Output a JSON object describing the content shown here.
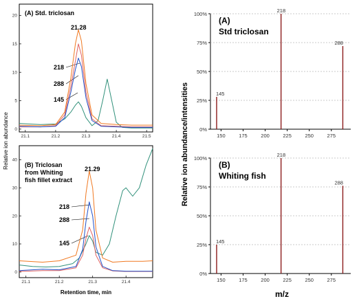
{
  "chart_data": [
    {
      "type": "line",
      "panel": "left-top",
      "title": "(A) Std. triclosan",
      "annotations": [
        "21.28",
        "218",
        "288",
        "145"
      ],
      "xlim": [
        21.08,
        21.52
      ],
      "x_ticks": [
        "21.1",
        "21.2",
        "21.3",
        "21.4",
        "21.5"
      ],
      "ylim": [
        -0.5,
        22
      ],
      "y_ticks": [
        "0",
        "5",
        "10",
        "15",
        "20"
      ],
      "series": [
        {
          "color": "#f07820",
          "x": [
            21.08,
            21.15,
            21.2,
            21.23,
            21.25,
            21.265,
            21.275,
            21.285,
            21.3,
            21.32,
            21.35,
            21.4,
            21.45,
            21.52
          ],
          "y": [
            0.7,
            0.6,
            0.8,
            3.0,
            9.0,
            15.0,
            17.5,
            15.5,
            8.0,
            2.5,
            1.0,
            0.8,
            0.7,
            0.7
          ]
        },
        {
          "color": "#2050c8",
          "x": [
            21.08,
            21.15,
            21.2,
            21.23,
            21.25,
            21.265,
            21.275,
            21.285,
            21.3,
            21.32,
            21.35,
            21.4,
            21.45,
            21.52
          ],
          "y": [
            0.5,
            0.4,
            0.5,
            2.0,
            6.5,
            10.5,
            12.5,
            11.0,
            5.5,
            1.5,
            0.5,
            0.4,
            0.3,
            0.3
          ]
        },
        {
          "color": "#e06060",
          "x": [
            21.08,
            21.15,
            21.2,
            21.23,
            21.25,
            21.265,
            21.275,
            21.285,
            21.3,
            21.32,
            21.35,
            21.4,
            21.45,
            21.52
          ],
          "y": [
            0.4,
            0.4,
            0.6,
            2.5,
            7.5,
            12.0,
            15.0,
            13.0,
            6.5,
            1.8,
            0.6,
            0.5,
            0.4,
            0.4
          ]
        },
        {
          "color": "#30907a",
          "x": [
            21.08,
            21.15,
            21.2,
            21.23,
            21.25,
            21.265,
            21.275,
            21.285,
            21.3,
            21.32,
            21.34,
            21.355,
            21.37,
            21.385,
            21.4,
            21.42,
            21.45,
            21.52
          ],
          "y": [
            1.0,
            0.8,
            0.9,
            1.8,
            3.0,
            4.2,
            4.8,
            4.0,
            2.0,
            0.6,
            1.5,
            5.0,
            8.8,
            5.0,
            1.2,
            0.3,
            0.2,
            0.2
          ]
        }
      ]
    },
    {
      "type": "line",
      "panel": "left-bottom",
      "title": "(B) Triclosan from Whiting fish fillet extract",
      "title_lines": [
        "(B) Triclosan",
        "from Whiting",
        "fish fillet extract"
      ],
      "annotations": [
        "21.29",
        "218",
        "288",
        "145"
      ],
      "xlim": [
        21.08,
        21.48
      ],
      "x_ticks": [
        "21.1",
        "21.2",
        "21.3",
        "21.4"
      ],
      "ylim": [
        -2,
        45
      ],
      "y_ticks": [
        "0",
        "10",
        "20",
        "30",
        "40"
      ],
      "series": [
        {
          "color": "#f07820",
          "x": [
            21.08,
            21.15,
            21.2,
            21.25,
            21.27,
            21.28,
            21.29,
            21.3,
            21.31,
            21.33,
            21.36,
            21.4,
            21.45,
            21.48
          ],
          "y": [
            4.0,
            3.5,
            4.0,
            6.0,
            15.0,
            28.0,
            36.0,
            30.0,
            15.0,
            5.0,
            3.5,
            3.8,
            3.8,
            4.0
          ]
        },
        {
          "color": "#2050c8",
          "x": [
            21.08,
            21.15,
            21.2,
            21.25,
            21.27,
            21.28,
            21.29,
            21.3,
            21.31,
            21.33,
            21.36,
            21.4,
            21.45,
            21.48
          ],
          "y": [
            0.5,
            1.0,
            0.8,
            2.0,
            8.0,
            18.0,
            25.0,
            20.0,
            9.0,
            2.0,
            0.5,
            0.3,
            0.3,
            0.3
          ]
        },
        {
          "color": "#e06060",
          "x": [
            21.08,
            21.15,
            21.2,
            21.25,
            21.27,
            21.28,
            21.29,
            21.3,
            21.31,
            21.33,
            21.36,
            21.4,
            21.45,
            21.48
          ],
          "y": [
            0.2,
            0.5,
            0.5,
            1.5,
            6.0,
            12.0,
            16.0,
            13.0,
            6.0,
            1.5,
            0.4,
            0.2,
            0.2,
            0.2
          ]
        },
        {
          "color": "#30907a",
          "x": [
            21.08,
            21.12,
            21.16,
            21.2,
            21.24,
            21.26,
            21.28,
            21.29,
            21.3,
            21.31,
            21.33,
            21.35,
            21.37,
            21.39,
            21.4,
            21.42,
            21.44,
            21.46,
            21.48
          ],
          "y": [
            2.5,
            2.0,
            1.8,
            2.0,
            3.0,
            5.0,
            10.0,
            13.0,
            11.0,
            7.0,
            6.0,
            10.0,
            20.0,
            29.0,
            30.0,
            27.0,
            30.0,
            38.0,
            44.0
          ]
        }
      ]
    },
    {
      "type": "bar",
      "panel": "right-top",
      "title": "(A) Std triclosan",
      "xlim": [
        138,
        297
      ],
      "x_ticks": [
        "150",
        "175",
        "200",
        "225",
        "250",
        "275"
      ],
      "ylim": [
        0,
        100
      ],
      "y_ticks": [
        "0%",
        "25%",
        "50%",
        "75%",
        "100%"
      ],
      "x": [
        145,
        218,
        288
      ],
      "values": [
        28,
        100,
        72
      ],
      "data_labels": [
        "145",
        "218",
        "288"
      ]
    },
    {
      "type": "bar",
      "panel": "right-bottom",
      "title": "(B) Whiting fish",
      "xlim": [
        138,
        297
      ],
      "x_ticks": [
        "150",
        "175",
        "200",
        "225",
        "250",
        "275"
      ],
      "ylim": [
        0,
        100
      ],
      "y_ticks": [
        "0%",
        "25%",
        "50%",
        "75%",
        "100%"
      ],
      "x": [
        145,
        218,
        288
      ],
      "values": [
        25,
        100,
        76
      ],
      "data_labels": [
        "145",
        "218",
        "288"
      ]
    }
  ],
  "labels": {
    "left_ylabel": "Relative ion abundance",
    "left_xlabel": "Retention time, min",
    "right_ylabel": "Relative ion abundance/intensities",
    "right_xlabel": "m/z",
    "left_top": {
      "title": "(A) Std. triclosan",
      "rt": "21.28",
      "ion1": "218",
      "ion2": "288",
      "ion3": "145"
    },
    "left_bottom": {
      "title1": "(B) Triclosan",
      "title2": "from Whiting",
      "title3": "fish fillet extract",
      "rt": "21.29",
      "ion1": "218",
      "ion2": "288",
      "ion3": "145"
    },
    "right_top": {
      "title1": "(A)",
      "title2": "Std triclosan"
    },
    "right_bottom": {
      "title1": "(B)",
      "title2": "Whiting fish"
    }
  }
}
